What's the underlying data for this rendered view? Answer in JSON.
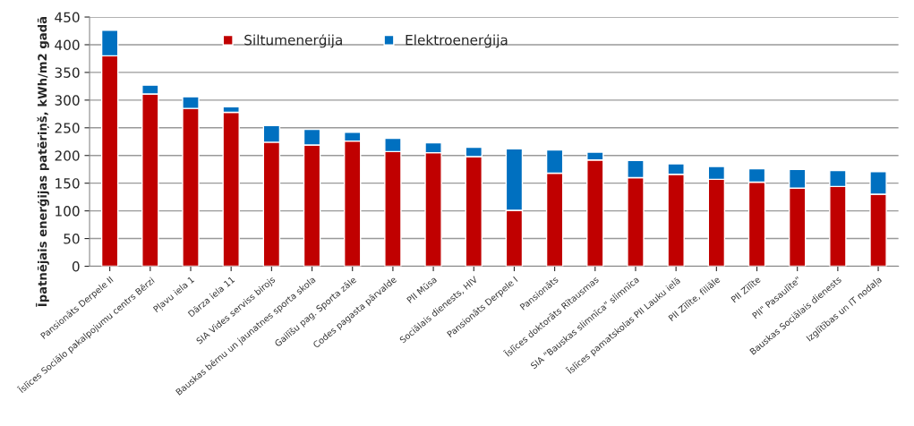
{
  "chart_data": {
    "type": "bar",
    "stacked": true,
    "ylabel": "Īpatnējais enerģijas patēriņš, kWh/m2 gadā",
    "categories": [
      "Pansionāts Derpele II",
      "Īslīces Sociālo pakalpojumu centrs Bērzi",
      "Pļavu iela 1",
      "Dārza iela 11",
      "SIA Vides serviss birojs",
      "Bauskas bērnu un jaunatnes sporta skola",
      "Gailīšu pag. Sporta zāle",
      "Codes pagasta pārvalde",
      "PII Mūsa",
      "Sociālais dienests, HIV",
      "Pansionāts Derpele I",
      "Pansionāts",
      "Īslīces doktorāts Rītausmas",
      "SIA \"Bauskas slimnīca\" slimnīca",
      "Īslīces pamatskolas PII Lauku ielā",
      "PII Zīlīte, filiāle",
      "PII Zīlīte",
      "PII\" Pasaulīte\"",
      "Bauskas Sociālais dienests",
      "Izglītības un IT nodaļa"
    ],
    "series": [
      {
        "name": "Siltumenerģija",
        "color": "#c00000",
        "values": [
          380,
          311,
          285,
          278,
          224,
          219,
          226,
          207,
          205,
          198,
          101,
          168,
          192,
          160,
          166,
          157,
          152,
          141,
          144,
          130
        ]
      },
      {
        "name": "Elektroenerģija",
        "color": "#0070c0",
        "values": [
          46,
          16,
          21,
          10,
          30,
          28,
          16,
          24,
          18,
          17,
          111,
          42,
          14,
          31,
          19,
          23,
          24,
          34,
          29,
          41
        ]
      }
    ],
    "ylim": [
      0,
      450
    ],
    "yticks": [
      0,
      50,
      100,
      150,
      200,
      250,
      300,
      350,
      400,
      450
    ],
    "grid": "y",
    "legend": "top"
  }
}
